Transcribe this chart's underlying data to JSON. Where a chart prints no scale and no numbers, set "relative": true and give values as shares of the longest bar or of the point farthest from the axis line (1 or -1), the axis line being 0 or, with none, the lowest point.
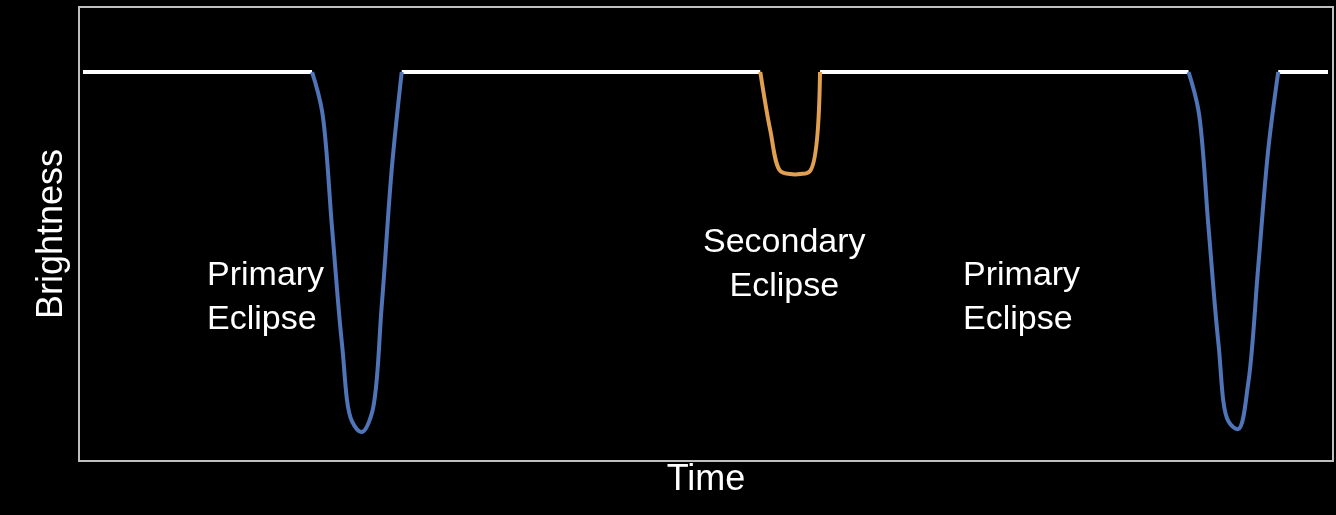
{
  "chart_data": {
    "type": "line",
    "relative": true,
    "xlabel": "Time",
    "ylabel": "Brightness",
    "grid": false,
    "tick_labels": false,
    "marker": "none",
    "line_style": "solid",
    "annotations": [
      "Primary\nEclipse",
      "Secondary\nEclipse",
      "Primary\nEclipse"
    ],
    "categories": [
      null,
      null,
      null,
      null,
      null,
      null,
      null,
      null,
      null,
      null,
      null,
      null,
      null,
      null,
      null,
      null,
      null,
      null,
      null,
      null,
      null,
      null,
      null,
      null,
      null,
      null,
      null,
      null,
      null,
      null,
      null,
      null,
      null,
      null,
      null,
      null,
      null,
      null,
      null,
      null,
      null,
      null,
      null,
      null,
      null,
      null,
      null,
      null,
      null,
      null,
      null,
      null,
      null,
      null,
      null,
      null,
      null,
      null,
      null,
      null,
      null,
      null,
      null,
      null,
      null,
      null,
      null,
      null,
      null,
      null,
      null,
      null,
      null,
      null,
      null,
      null,
      null,
      null,
      null,
      null,
      null,
      null,
      null,
      null,
      null,
      null,
      null,
      null,
      null,
      null,
      null,
      null,
      null,
      null,
      null,
      null,
      null,
      null,
      null,
      null,
      null,
      null,
      null,
      null,
      null,
      null,
      null,
      null,
      null,
      null,
      null,
      null,
      null,
      null,
      null,
      null,
      null,
      null,
      null,
      null,
      null,
      null,
      null,
      null,
      null,
      null
    ],
    "series": [
      {
        "color": "#ffffff",
        "values": [
          1,
          1,
          1,
          1,
          1,
          1,
          1,
          1,
          1,
          1,
          1,
          1,
          1,
          1,
          1,
          1,
          1,
          1,
          1,
          1,
          1,
          1,
          1,
          1,
          null,
          null,
          null,
          null,
          null,
          null,
          null,
          null,
          1,
          1,
          1,
          1,
          1,
          1,
          1,
          1,
          1,
          1,
          1,
          1,
          1,
          1,
          1,
          1,
          1,
          1,
          1,
          1,
          1,
          1,
          1,
          1,
          1,
          1,
          1,
          1,
          1,
          1,
          1,
          1,
          1,
          1,
          1,
          1,
          1,
          null,
          null,
          null,
          null,
          null,
          1,
          1,
          1,
          1,
          1,
          1,
          1,
          1,
          1,
          1,
          1,
          1,
          1,
          1,
          1,
          1,
          1,
          1,
          1,
          1,
          1,
          1,
          1,
          1,
          1,
          1,
          1,
          1,
          1,
          1,
          1,
          1,
          1,
          1,
          1,
          1,
          1,
          1,
          null,
          null,
          null,
          null,
          null,
          null,
          null,
          null,
          1,
          1,
          1,
          1,
          1,
          1
        ]
      },
      {
        "color": "#4f74b8",
        "values": [
          null,
          null,
          null,
          null,
          null,
          null,
          null,
          null,
          null,
          null,
          null,
          null,
          null,
          null,
          null,
          null,
          null,
          null,
          null,
          null,
          null,
          null,
          null,
          1,
          0.9,
          0.6,
          0.3,
          0.1,
          0.072,
          0.12,
          0.4,
          0.75,
          1,
          null,
          null,
          null,
          null,
          null,
          null,
          null,
          null,
          null,
          null,
          null,
          null,
          null,
          null,
          null,
          null,
          null,
          null,
          null,
          null,
          null,
          null,
          null,
          null,
          null,
          null,
          null,
          null,
          null,
          null,
          null,
          null,
          null,
          null,
          null,
          null,
          null,
          null,
          null,
          null,
          null,
          null,
          null,
          null,
          null,
          null,
          null,
          null,
          null,
          null,
          null,
          null,
          null,
          null,
          null,
          null,
          null,
          null,
          null,
          null,
          null,
          null,
          null,
          null,
          null,
          null,
          null,
          null,
          null,
          null,
          null,
          null,
          null,
          null,
          null,
          null,
          null,
          null,
          1,
          0.9,
          0.6,
          0.3,
          0.1,
          0.08,
          0.2,
          0.5,
          0.8,
          1,
          null,
          null,
          null,
          null,
          null
        ]
      },
      {
        "color": "#e0a050",
        "values": [
          null,
          null,
          null,
          null,
          null,
          null,
          null,
          null,
          null,
          null,
          null,
          null,
          null,
          null,
          null,
          null,
          null,
          null,
          null,
          null,
          null,
          null,
          null,
          null,
          null,
          null,
          null,
          null,
          null,
          null,
          null,
          null,
          null,
          null,
          null,
          null,
          null,
          null,
          null,
          null,
          null,
          null,
          null,
          null,
          null,
          null,
          null,
          null,
          null,
          null,
          null,
          null,
          null,
          null,
          null,
          null,
          null,
          null,
          null,
          null,
          null,
          null,
          null,
          null,
          null,
          null,
          null,
          null,
          1,
          0.85,
          0.745,
          0.737,
          0.737,
          0.745,
          1,
          null,
          null,
          null,
          null,
          null,
          null,
          null,
          null,
          null,
          null,
          null,
          null,
          null,
          null,
          null,
          null,
          null,
          null,
          null,
          null,
          null,
          null,
          null,
          null,
          null,
          null,
          null,
          null,
          null,
          null,
          null,
          null,
          null,
          null,
          null,
          null,
          null,
          null,
          null,
          null,
          null,
          null,
          null,
          null,
          null,
          null,
          null,
          null,
          null,
          null,
          null
        ]
      }
    ]
  }
}
